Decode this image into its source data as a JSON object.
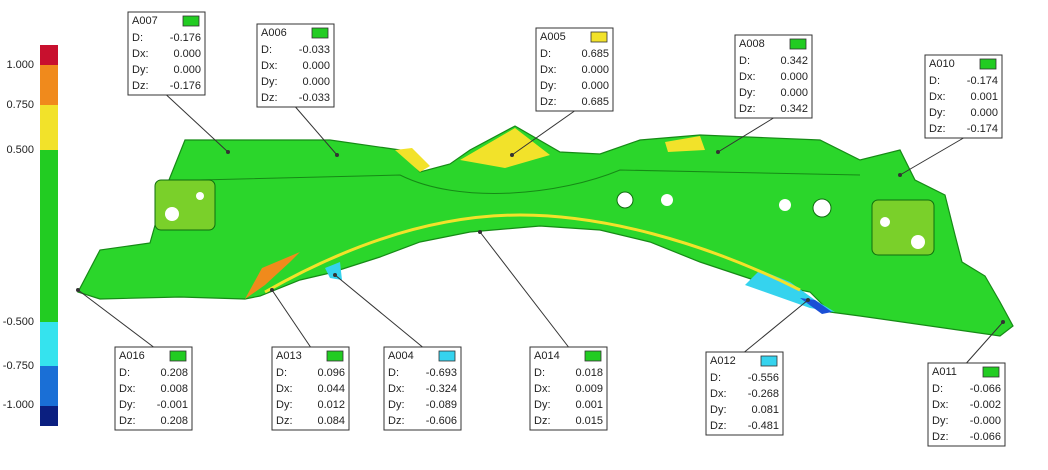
{
  "legend": {
    "labels": [
      "1.000",
      "0.750",
      "0.500",
      "-0.500",
      "-0.750",
      "-1.000"
    ]
  },
  "row_labels": [
    "D:",
    "Dx:",
    "Dy:",
    "Dz:"
  ],
  "callouts": [
    {
      "id": "A007",
      "color": "#22cc22",
      "values": [
        "-0.176",
        "0.000",
        "0.000",
        "-0.176"
      ]
    },
    {
      "id": "A006",
      "color": "#22cc22",
      "values": [
        "-0.033",
        "0.000",
        "0.000",
        "-0.033"
      ]
    },
    {
      "id": "A005",
      "color": "#f2e22a",
      "values": [
        "0.685",
        "0.000",
        "0.000",
        "0.685"
      ]
    },
    {
      "id": "A008",
      "color": "#22cc22",
      "values": [
        "0.342",
        "0.000",
        "0.000",
        "0.342"
      ]
    },
    {
      "id": "A010",
      "color": "#22cc22",
      "values": [
        "-0.174",
        "0.001",
        "0.000",
        "-0.174"
      ]
    },
    {
      "id": "A016",
      "color": "#22cc22",
      "values": [
        "0.208",
        "0.008",
        "-0.001",
        "0.208"
      ]
    },
    {
      "id": "A013",
      "color": "#22cc22",
      "values": [
        "0.096",
        "0.044",
        "0.012",
        "0.084"
      ]
    },
    {
      "id": "A004",
      "color": "#35d3ee",
      "values": [
        "-0.693",
        "-0.324",
        "-0.089",
        "-0.606"
      ]
    },
    {
      "id": "A014",
      "color": "#22cc22",
      "values": [
        "0.018",
        "0.009",
        "0.001",
        "0.015"
      ]
    },
    {
      "id": "A012",
      "color": "#35d3ee",
      "values": [
        "-0.556",
        "-0.268",
        "0.081",
        "-0.481"
      ]
    },
    {
      "id": "A011",
      "color": "#22cc22",
      "values": [
        "-0.066",
        "-0.002",
        "-0.000",
        "-0.066"
      ]
    }
  ]
}
